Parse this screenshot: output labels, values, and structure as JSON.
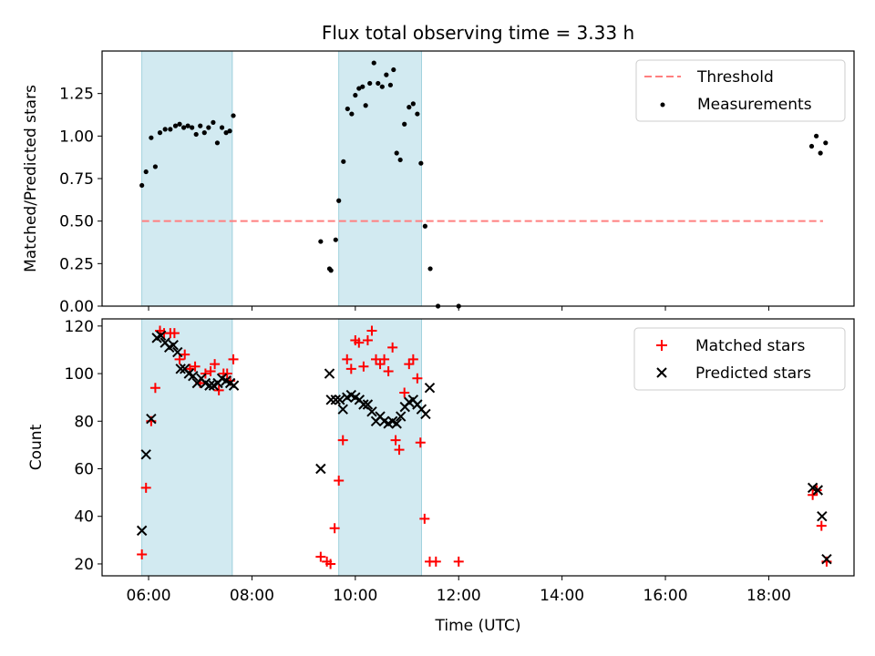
{
  "chart_data": {
    "title": "Flux total observing time = 3.33 h",
    "xlabel": "Time (UTC)",
    "x_ticks": [
      "06:00",
      "08:00",
      "10:00",
      "12:00",
      "14:00",
      "16:00",
      "18:00"
    ],
    "x_tick_hours": [
      6,
      8,
      10,
      12,
      14,
      16,
      18
    ],
    "xlim_hours": [
      5.1,
      19.65
    ],
    "shaded_intervals_hours": [
      [
        5.87,
        7.62
      ],
      [
        9.68,
        11.28
      ]
    ],
    "shade_color": "#add8e6",
    "top": {
      "type": "scatter",
      "ylabel": "Matched/Predicted stars",
      "ylim": [
        0,
        1.5
      ],
      "y_ticks": [
        "0.00",
        "0.25",
        "0.50",
        "0.75",
        "1.00",
        "1.25"
      ],
      "y_tick_values": [
        0,
        0.25,
        0.5,
        0.75,
        1.0,
        1.25
      ],
      "legend_placement": "upper-right",
      "threshold": {
        "name": "Threshold",
        "value": 0.5,
        "x_range_hours": [
          5.87,
          19.05
        ],
        "color": "#ff7f7f"
      },
      "measurements": {
        "name": "Measurements",
        "color": "#000000",
        "points": [
          [
            5.87,
            0.71
          ],
          [
            5.95,
            0.79
          ],
          [
            6.05,
            0.99
          ],
          [
            6.13,
            0.82
          ],
          [
            6.22,
            1.02
          ],
          [
            6.32,
            1.04
          ],
          [
            6.42,
            1.04
          ],
          [
            6.52,
            1.06
          ],
          [
            6.6,
            1.07
          ],
          [
            6.68,
            1.05
          ],
          [
            6.76,
            1.06
          ],
          [
            6.84,
            1.05
          ],
          [
            6.92,
            1.01
          ],
          [
            7.0,
            1.06
          ],
          [
            7.08,
            1.02
          ],
          [
            7.16,
            1.05
          ],
          [
            7.25,
            1.08
          ],
          [
            7.33,
            0.96
          ],
          [
            7.42,
            1.05
          ],
          [
            7.5,
            1.02
          ],
          [
            7.57,
            1.03
          ],
          [
            7.64,
            1.12
          ],
          [
            9.33,
            0.38
          ],
          [
            9.5,
            0.22
          ],
          [
            9.53,
            0.21
          ],
          [
            9.62,
            0.39
          ],
          [
            9.68,
            0.62
          ],
          [
            9.77,
            0.85
          ],
          [
            9.85,
            1.16
          ],
          [
            9.93,
            1.13
          ],
          [
            10.0,
            1.24
          ],
          [
            10.07,
            1.28
          ],
          [
            10.14,
            1.29
          ],
          [
            10.2,
            1.18
          ],
          [
            10.28,
            1.31
          ],
          [
            10.36,
            1.43
          ],
          [
            10.44,
            1.31
          ],
          [
            10.52,
            1.29
          ],
          [
            10.6,
            1.36
          ],
          [
            10.68,
            1.3
          ],
          [
            10.74,
            1.39
          ],
          [
            10.8,
            0.9
          ],
          [
            10.87,
            0.86
          ],
          [
            10.95,
            1.07
          ],
          [
            11.04,
            1.17
          ],
          [
            11.12,
            1.19
          ],
          [
            11.2,
            1.13
          ],
          [
            11.27,
            0.84
          ],
          [
            11.35,
            0.47
          ],
          [
            11.45,
            0.22
          ],
          [
            11.6,
            0.0
          ],
          [
            12.0,
            0.0
          ],
          [
            18.83,
            0.94
          ],
          [
            18.92,
            1.0
          ],
          [
            19.0,
            0.9
          ],
          [
            19.1,
            0.96
          ]
        ]
      }
    },
    "bottom": {
      "type": "scatter",
      "ylabel": "Count",
      "ylim": [
        15,
        123
      ],
      "y_ticks": [
        "20",
        "40",
        "60",
        "80",
        "100",
        "120"
      ],
      "y_tick_values": [
        20,
        40,
        60,
        80,
        100,
        120
      ],
      "legend_placement": "upper-right",
      "matched": {
        "name": "Matched stars",
        "color": "#ff0000",
        "points": [
          [
            5.87,
            24
          ],
          [
            5.95,
            52
          ],
          [
            6.05,
            80
          ],
          [
            6.13,
            94
          ],
          [
            6.22,
            118
          ],
          [
            6.3,
            117
          ],
          [
            6.42,
            117
          ],
          [
            6.5,
            117
          ],
          [
            6.6,
            106
          ],
          [
            6.7,
            108
          ],
          [
            6.8,
            102
          ],
          [
            6.9,
            103
          ],
          [
            7.0,
            96
          ],
          [
            7.1,
            100
          ],
          [
            7.2,
            101
          ],
          [
            7.28,
            104
          ],
          [
            7.36,
            93
          ],
          [
            7.45,
            100
          ],
          [
            7.52,
            100
          ],
          [
            7.58,
            97
          ],
          [
            7.64,
            106
          ],
          [
            9.33,
            23
          ],
          [
            9.45,
            21
          ],
          [
            9.52,
            20
          ],
          [
            9.6,
            35
          ],
          [
            9.68,
            55
          ],
          [
            9.76,
            72
          ],
          [
            9.84,
            106
          ],
          [
            9.92,
            102
          ],
          [
            10.0,
            114
          ],
          [
            10.07,
            113
          ],
          [
            10.16,
            103
          ],
          [
            10.24,
            114
          ],
          [
            10.32,
            118
          ],
          [
            10.4,
            106
          ],
          [
            10.48,
            104
          ],
          [
            10.56,
            106
          ],
          [
            10.64,
            101
          ],
          [
            10.72,
            111
          ],
          [
            10.78,
            72
          ],
          [
            10.85,
            68
          ],
          [
            10.95,
            92
          ],
          [
            11.04,
            104
          ],
          [
            11.12,
            106
          ],
          [
            11.2,
            98
          ],
          [
            11.26,
            71
          ],
          [
            11.34,
            39
          ],
          [
            11.44,
            21
          ],
          [
            11.56,
            21
          ],
          [
            12.0,
            21
          ],
          [
            18.85,
            49
          ],
          [
            18.93,
            51
          ],
          [
            19.02,
            36
          ],
          [
            19.12,
            21
          ]
        ]
      },
      "predicted": {
        "name": "Predicted stars",
        "color": "#000000",
        "points": [
          [
            5.87,
            34
          ],
          [
            5.95,
            66
          ],
          [
            6.05,
            81
          ],
          [
            6.16,
            115
          ],
          [
            6.24,
            116
          ],
          [
            6.32,
            113
          ],
          [
            6.4,
            111
          ],
          [
            6.48,
            112
          ],
          [
            6.56,
            109
          ],
          [
            6.62,
            102
          ],
          [
            6.7,
            102
          ],
          [
            6.78,
            100
          ],
          [
            6.86,
            99
          ],
          [
            6.94,
            96
          ],
          [
            7.02,
            98
          ],
          [
            7.1,
            96
          ],
          [
            7.18,
            95
          ],
          [
            7.26,
            95
          ],
          [
            7.34,
            96
          ],
          [
            7.42,
            98
          ],
          [
            7.5,
            97
          ],
          [
            7.58,
            96
          ],
          [
            7.65,
            95
          ],
          [
            9.33,
            60
          ],
          [
            9.5,
            100
          ],
          [
            9.53,
            89
          ],
          [
            9.62,
            89
          ],
          [
            9.7,
            89
          ],
          [
            9.76,
            85
          ],
          [
            9.84,
            90
          ],
          [
            9.92,
            91
          ],
          [
            10.0,
            90
          ],
          [
            10.08,
            89
          ],
          [
            10.16,
            87
          ],
          [
            10.24,
            87
          ],
          [
            10.32,
            84
          ],
          [
            10.4,
            80
          ],
          [
            10.48,
            82
          ],
          [
            10.56,
            80
          ],
          [
            10.64,
            79
          ],
          [
            10.72,
            80
          ],
          [
            10.8,
            79
          ],
          [
            10.88,
            82
          ],
          [
            10.96,
            86
          ],
          [
            11.04,
            88
          ],
          [
            11.12,
            89
          ],
          [
            11.2,
            87
          ],
          [
            11.28,
            85
          ],
          [
            11.36,
            83
          ],
          [
            11.44,
            94
          ],
          [
            18.85,
            52
          ],
          [
            18.95,
            51
          ],
          [
            19.03,
            40
          ],
          [
            19.12,
            22
          ]
        ]
      }
    }
  }
}
